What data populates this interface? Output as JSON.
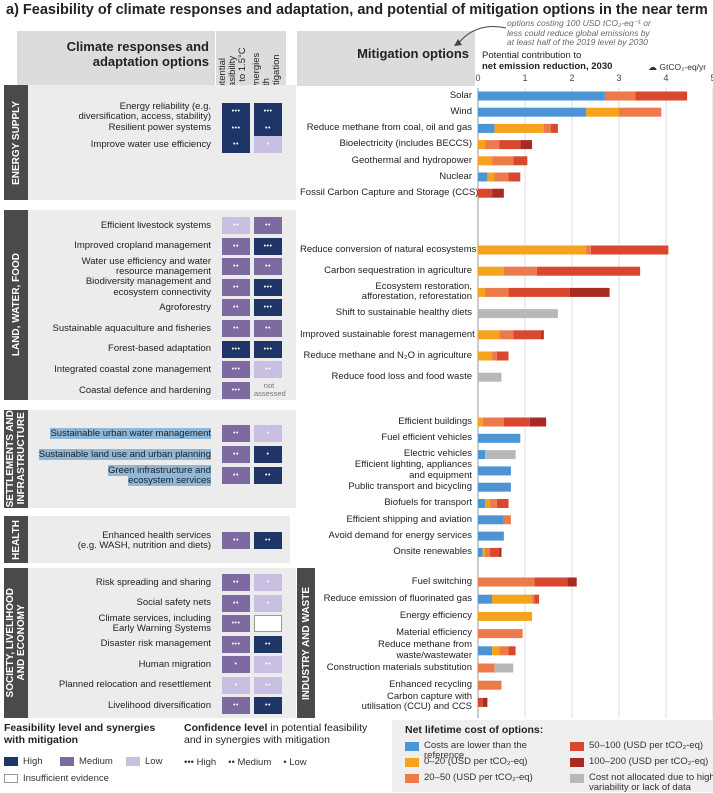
{
  "title": "a) Feasibility of climate responses and adaptation, and potential of mitigation options in the near term",
  "headers": {
    "left": [
      "Climate responses and",
      "adaptation options"
    ],
    "col1": [
      "Potential",
      "feasibility",
      "up to 1.5°C"
    ],
    "col2": [
      "Synergies",
      "with",
      "mitigation"
    ],
    "right": "Mitigation options",
    "annotation": [
      "options costing 100 USD tCO₂-eq⁻¹ or",
      "less could reduce global emissions by",
      "at least half of the 2019 level by 2030"
    ],
    "axis_title": [
      "Potential contribution to",
      "net emission reduction, 2030"
    ],
    "axis_unit": "GtCO₂-eq/yr"
  },
  "colors": {
    "high": "#1f3567",
    "medium": "#7d6aa0",
    "low": "#c9bfe0",
    "lower": "#4c94d4",
    "c0_20": "#f5a21d",
    "c20_50": "#ec7a4a",
    "c50_100": "#d9472e",
    "c100_200": "#a82a22",
    "na": "#b8b8b8"
  },
  "sections": [
    {
      "name": [
        "ENERGY SUPPLY"
      ],
      "adaptation": [
        {
          "label": [
            "Energy reliability (e.g.",
            "diversification, access, stability)"
          ],
          "feas": "high",
          "feas_conf": "•••",
          "syn": "high",
          "syn_conf": "•••"
        },
        {
          "label": [
            "Resilient power systems"
          ],
          "feas": "high",
          "feas_conf": "•••",
          "syn": "high",
          "syn_conf": "••"
        },
        {
          "label": [
            "Improve water use efficiency"
          ],
          "feas": "high",
          "feas_conf": "••",
          "syn": "low",
          "syn_conf": "•"
        }
      ]
    },
    {
      "name": [
        "LAND, WATER, FOOD"
      ],
      "adaptation": [
        {
          "label": [
            "Efficient livestock systems"
          ],
          "feas": "low",
          "feas_conf": "••",
          "syn": "medium",
          "syn_conf": "••"
        },
        {
          "label": [
            "Improved cropland management"
          ],
          "feas": "medium",
          "feas_conf": "••",
          "syn": "high",
          "syn_conf": "•••"
        },
        {
          "label": [
            "Water use efficiency and water",
            "resource management"
          ],
          "feas": "medium",
          "feas_conf": "••",
          "syn": "medium",
          "syn_conf": "••"
        },
        {
          "label": [
            "Biodiversity management and",
            "ecosystem connectivity"
          ],
          "feas": "medium",
          "feas_conf": "••",
          "syn": "high",
          "syn_conf": "•••"
        },
        {
          "label": [
            "Agroforestry"
          ],
          "feas": "medium",
          "feas_conf": "••",
          "syn": "high",
          "syn_conf": "•••"
        },
        {
          "label": [
            "Sustainable aquaculture and fisheries"
          ],
          "feas": "medium",
          "feas_conf": "••",
          "syn": "medium",
          "syn_conf": "••"
        },
        {
          "label": [
            "Forest-based adaptation"
          ],
          "feas": "high",
          "feas_conf": "•••",
          "syn": "high",
          "syn_conf": "•••"
        },
        {
          "label": [
            "Integrated coastal zone management"
          ],
          "feas": "medium",
          "feas_conf": "•••",
          "syn": "low",
          "syn_conf": "••"
        },
        {
          "label": [
            "Coastal defence and hardening"
          ],
          "feas": "medium",
          "feas_conf": "•••",
          "syn": "none",
          "syn_conf": "",
          "syn_note": [
            "not",
            "assessed"
          ]
        }
      ]
    },
    {
      "name": [
        "SETTLEMENTS AND",
        "INFRASTRUCTURE"
      ],
      "adaptation": [
        {
          "label": [
            "Sustainable urban water management"
          ],
          "feas": "medium",
          "feas_conf": "••",
          "syn": "low",
          "syn_conf": "•"
        },
        {
          "label": [
            "Sustainable land use and urban planning"
          ],
          "feas": "medium",
          "feas_conf": "••",
          "syn": "high",
          "syn_conf": "•"
        },
        {
          "label": [
            "Green infrastructure and",
            "ecosystem services"
          ],
          "feas": "medium",
          "feas_conf": "••",
          "syn": "high",
          "syn_conf": "••"
        }
      ]
    },
    {
      "name": [
        "HEALTH"
      ],
      "adaptation": [
        {
          "label": [
            "Enhanced health services",
            "(e.g. WASH, nutrition and diets)"
          ],
          "feas": "medium",
          "feas_conf": "••",
          "syn": "high",
          "syn_conf": "••"
        }
      ]
    },
    {
      "name": [
        "SOCIETY, LIVELIHOOD",
        "AND ECONOMY"
      ],
      "adaptation": [
        {
          "label": [
            "Risk spreading and sharing"
          ],
          "feas": "medium",
          "feas_conf": "••",
          "syn": "low",
          "syn_conf": "•"
        },
        {
          "label": [
            "Social safety nets"
          ],
          "feas": "medium",
          "feas_conf": "••",
          "syn": "low",
          "syn_conf": "•"
        },
        {
          "label": [
            "Climate services, including",
            "Early Warning Systems"
          ],
          "feas": "medium",
          "feas_conf": "•••",
          "syn": "insufficient",
          "syn_conf": ""
        },
        {
          "label": [
            "Disaster risk management"
          ],
          "feas": "medium",
          "feas_conf": "•••",
          "syn": "high",
          "syn_conf": "••"
        },
        {
          "label": [
            "Human migration"
          ],
          "feas": "medium",
          "feas_conf": "•",
          "syn": "low",
          "syn_conf": "••"
        },
        {
          "label": [
            "Planned relocation and resettlement"
          ],
          "feas": "low",
          "feas_conf": "•",
          "syn": "low",
          "syn_conf": "••"
        },
        {
          "label": [
            "Livelihood diversification"
          ],
          "feas": "medium",
          "feas_conf": "••",
          "syn": "high",
          "syn_conf": "••"
        }
      ]
    }
  ],
  "chart_data": {
    "type": "bar",
    "stacked": true,
    "orientation": "horizontal",
    "xlim": [
      0,
      5
    ],
    "xticks": [
      "0",
      "1",
      "2",
      "3",
      "4",
      "5"
    ],
    "cost_keys": [
      "lower",
      "c0_20",
      "c20_50",
      "c50_100",
      "c100_200",
      "na"
    ],
    "groups": [
      {
        "name": "ENERGY SUPPLY",
        "options": [
          {
            "label": [
              "Solar"
            ],
            "values": [
              2.7,
              0,
              0.65,
              1.1,
              0,
              0
            ]
          },
          {
            "label": [
              "Wind"
            ],
            "values": [
              2.3,
              0.7,
              0.9,
              0,
              0,
              0
            ]
          },
          {
            "label": [
              "Reduce methane from coal, oil and gas"
            ],
            "values": [
              0.35,
              1.05,
              0.15,
              0.15,
              0,
              0
            ]
          },
          {
            "label": [
              "Bioelectricity (includes BECCS)"
            ],
            "values": [
              0,
              0.15,
              0.3,
              0.45,
              0.25,
              0
            ]
          },
          {
            "label": [
              "Geothermal and hydropower"
            ],
            "values": [
              0,
              0.3,
              0.45,
              0.3,
              0,
              0
            ]
          },
          {
            "label": [
              "Nuclear"
            ],
            "values": [
              0.2,
              0.15,
              0.3,
              0.25,
              0,
              0
            ]
          },
          {
            "label": [
              "Fossil Carbon Capture and Storage (CCS)"
            ],
            "values": [
              0,
              0,
              0,
              0.3,
              0.25,
              0
            ]
          }
        ]
      },
      {
        "name": "LAND, WATER, FOOD",
        "options": [
          {
            "label": [
              "Reduce conversion of natural ecosystems"
            ],
            "values": [
              0,
              2.3,
              0.1,
              1.65,
              0,
              0
            ]
          },
          {
            "label": [
              "Carbon sequestration in agriculture"
            ],
            "values": [
              0,
              0.55,
              0.7,
              2.2,
              0,
              0
            ]
          },
          {
            "label": [
              "Ecosystem restoration,",
              "afforestation, reforestation"
            ],
            "values": [
              0,
              0.15,
              0.5,
              1.3,
              0.85,
              0
            ]
          },
          {
            "label": [
              "Shift to sustainable healthy diets"
            ],
            "values": [
              0,
              0,
              0,
              0,
              0,
              1.7
            ]
          },
          {
            "label": [
              "Improved sustainable forest management"
            ],
            "values": [
              0,
              0.45,
              0.3,
              0.6,
              0.05,
              0
            ]
          },
          {
            "label": [
              "Reduce methane and N₂O in agriculture"
            ],
            "values": [
              0,
              0.3,
              0.1,
              0.25,
              0,
              0
            ]
          },
          {
            "label": [
              "Reduce food loss and food waste"
            ],
            "values": [
              0,
              0,
              0,
              0,
              0,
              0.5
            ]
          }
        ]
      },
      {
        "name": "SETTLEMENTS AND INFRASTRUCTURE",
        "options": [
          {
            "label": [
              "Efficient buildings"
            ],
            "values": [
              0,
              0.1,
              0.45,
              0.55,
              0.35,
              0
            ]
          },
          {
            "label": [
              "Fuel efficient vehicles"
            ],
            "values": [
              0.9,
              0,
              0,
              0,
              0,
              0
            ]
          },
          {
            "label": [
              "Electric vehicles"
            ],
            "values": [
              0.15,
              0,
              0,
              0,
              0,
              0.65
            ]
          },
          {
            "label": [
              "Efficient lighting, appliances",
              "and equipment"
            ],
            "values": [
              0.7,
              0,
              0,
              0,
              0,
              0
            ]
          },
          {
            "label": [
              "Public transport and bicycling"
            ],
            "values": [
              0.7,
              0,
              0,
              0,
              0,
              0
            ]
          },
          {
            "label": [
              "Biofuels for transport"
            ],
            "values": [
              0.15,
              0.1,
              0.15,
              0.25,
              0,
              0
            ]
          },
          {
            "label": [
              "Efficient shipping and aviation"
            ],
            "values": [
              0.55,
              0,
              0.15,
              0,
              0,
              0
            ]
          },
          {
            "label": [
              "Avoid demand for energy services"
            ],
            "values": [
              0.55,
              0,
              0,
              0,
              0,
              0
            ]
          },
          {
            "label": [
              "Onsite renewables"
            ],
            "values": [
              0.1,
              0.05,
              0.1,
              0.2,
              0.05,
              0
            ]
          }
        ]
      },
      {
        "name": "INDUSTRY AND WASTE",
        "options": [
          {
            "label": [
              "Fuel switching"
            ],
            "values": [
              0,
              0,
              1.2,
              0.7,
              0.2,
              0
            ]
          },
          {
            "label": [
              "Reduce emission of fluorinated gas"
            ],
            "values": [
              0.3,
              0.85,
              0.05,
              0.1,
              0,
              0
            ]
          },
          {
            "label": [
              "Energy efficiency"
            ],
            "values": [
              0,
              1.15,
              0,
              0,
              0,
              0
            ]
          },
          {
            "label": [
              "Material efficiency"
            ],
            "values": [
              0,
              0,
              0.95,
              0,
              0,
              0
            ]
          },
          {
            "label": [
              "Reduce methane from",
              "waste/wastewater"
            ],
            "values": [
              0.3,
              0.15,
              0.2,
              0.15,
              0,
              0
            ]
          },
          {
            "label": [
              "Construction materials substitution"
            ],
            "values": [
              0,
              0,
              0.35,
              0,
              0,
              0.4
            ]
          },
          {
            "label": [
              "Enhanced recycling"
            ],
            "values": [
              0,
              0,
              0.5,
              0,
              0,
              0
            ]
          },
          {
            "label": [
              "Carbon capture with",
              "utilisation (CCU) and CCS"
            ],
            "values": [
              0,
              0,
              0,
              0.1,
              0.1,
              0
            ]
          }
        ]
      }
    ]
  },
  "legend": {
    "feas_title": [
      "Feasibility level and synergies",
      "with mitigation"
    ],
    "feas_items": [
      {
        "key": "high",
        "label": "High"
      },
      {
        "key": "medium",
        "label": "Medium"
      },
      {
        "key": "low",
        "label": "Low"
      },
      {
        "key": "insufficient",
        "label": "Insufficient evidence"
      }
    ],
    "conf_title_bold": "Confidence level",
    "conf_title_rest": " in potential feasibility",
    "conf_title_2": "and in synergies with mitigation",
    "conf_items": [
      {
        "dots": "•••",
        "label": "High"
      },
      {
        "dots": "••",
        "label": "Medium"
      },
      {
        "dots": "•",
        "label": "Low"
      }
    ],
    "cost_title": "Net lifetime cost of options:",
    "cost_items": [
      {
        "key": "lower",
        "label": [
          "Costs are lower than the reference"
        ]
      },
      {
        "key": "c0_20",
        "label": [
          "0–20 (USD per tCO₂-eq)"
        ]
      },
      {
        "key": "c20_50",
        "label": [
          "20–50 (USD per tCO₂-eq)"
        ]
      },
      {
        "key": "c50_100",
        "label": [
          "50–100 (USD per tCO₂-eq)"
        ]
      },
      {
        "key": "c100_200",
        "label": [
          "100–200 (USD per tCO₂-eq)"
        ]
      },
      {
        "key": "na",
        "label": [
          "Cost not allocated due to high",
          "variability or lack of data"
        ]
      }
    ]
  }
}
